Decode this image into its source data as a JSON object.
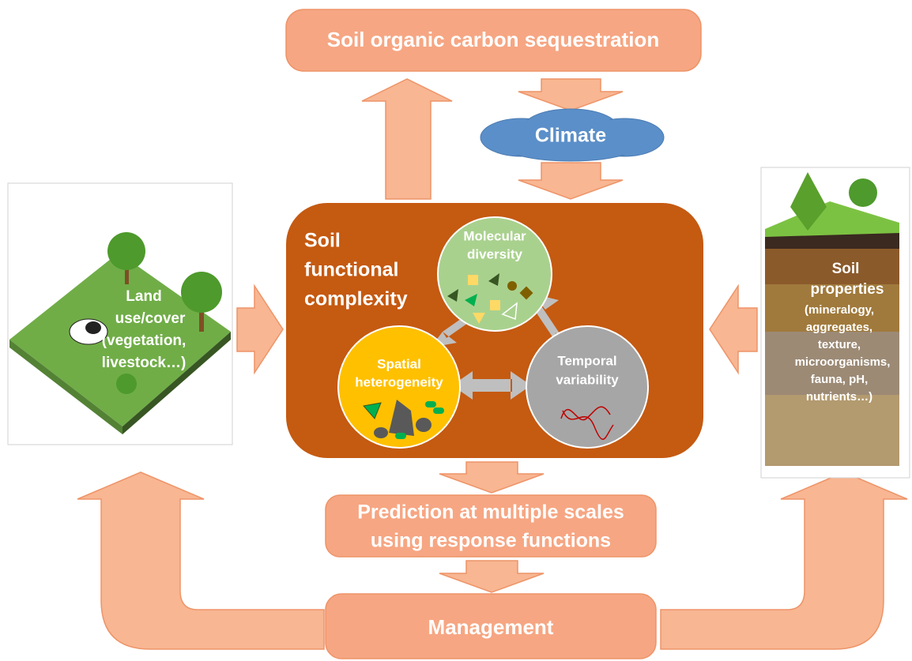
{
  "top_box": "Soil organic carbon sequestration",
  "climate": "Climate",
  "center": {
    "title_lines": [
      "Soil",
      "functional",
      "complexity"
    ],
    "molecular_lines": [
      "Molecular",
      "diversity"
    ],
    "spatial_lines": [
      "Spatial",
      "heterogeneity"
    ],
    "temporal_lines": [
      "Temporal",
      "variability"
    ]
  },
  "left_panel": {
    "lines": [
      "Land",
      "use/cover",
      "(vegetation,",
      "livestock…)"
    ]
  },
  "right_panel": {
    "title_lines": [
      "Soil",
      "properties"
    ],
    "detail_lines": [
      "(mineralogy,",
      "aggregates,",
      "texture,",
      "microorganisms,",
      "fauna, pH,",
      "nutrients…)"
    ]
  },
  "prediction_lines": [
    "Prediction at multiple scales",
    "using response functions"
  ],
  "management": "Management"
}
